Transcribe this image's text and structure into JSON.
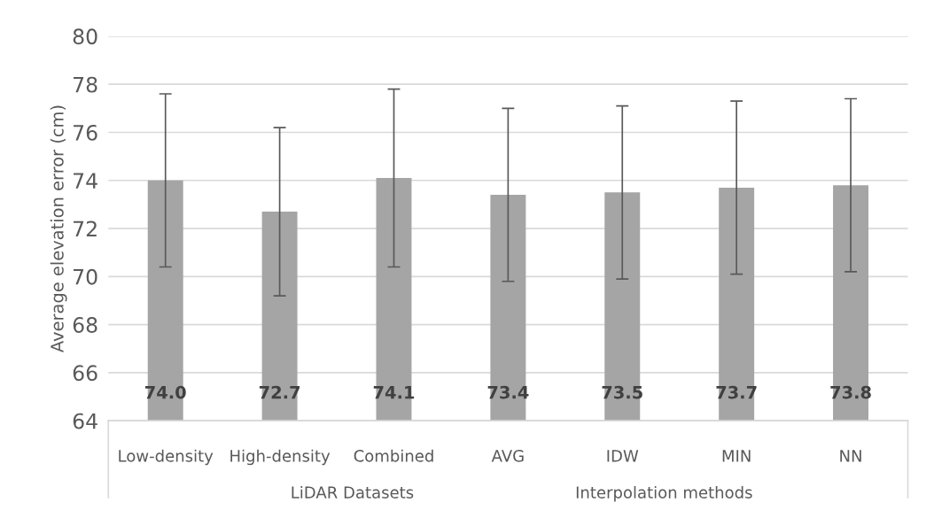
{
  "chart_data": {
    "type": "bar",
    "ylabel": "Average elevation error (cm)",
    "categories": [
      "Low-density",
      "High-density",
      "Combined",
      "AVG",
      "IDW",
      "MIN",
      "NN"
    ],
    "values": [
      74.0,
      72.7,
      74.1,
      73.4,
      73.5,
      73.7,
      73.8
    ],
    "errors": [
      3.6,
      3.5,
      3.7,
      3.6,
      3.6,
      3.6,
      3.6
    ],
    "color": "#a5a5a5",
    "value_labels": [
      "74.0",
      "72.7",
      "74.1",
      "73.4",
      "73.5",
      "73.7",
      "73.8"
    ],
    "ylim": [
      64,
      80
    ],
    "yticks": [
      64,
      66,
      68,
      70,
      72,
      74,
      76,
      78,
      80
    ],
    "grid": "y",
    "legend": false,
    "annotations": [
      "LiDAR Datasets",
      "Interpolation methods"
    ]
  }
}
